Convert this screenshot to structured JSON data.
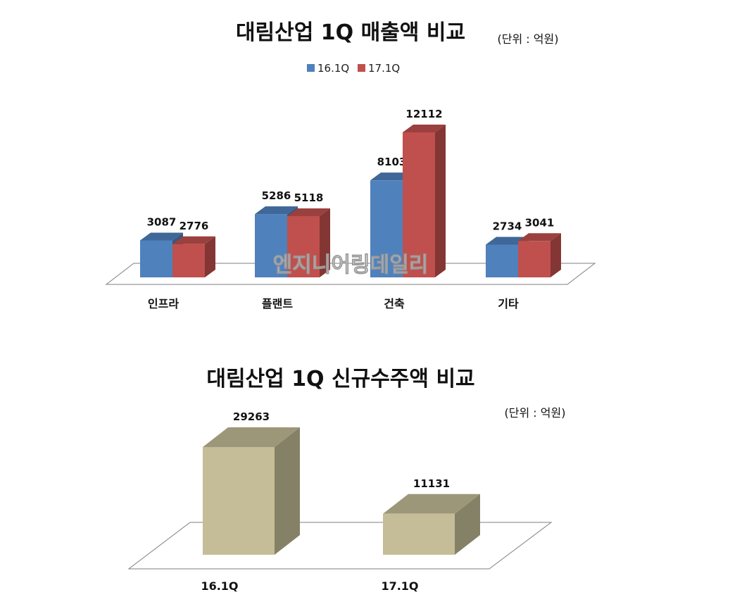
{
  "watermark": "엔지니어링데일리",
  "chart_data": [
    {
      "type": "bar",
      "title": "대림산업 1Q 매출액 비교",
      "unit": "(단위 : 억원)",
      "categories": [
        "인프라",
        "플랜트",
        "건축",
        "기타"
      ],
      "series": [
        {
          "name": "16.1Q",
          "color": "#4f81bd",
          "values": [
            3087,
            5286,
            8103,
            2734
          ]
        },
        {
          "name": "17.1Q",
          "color": "#c0504d",
          "values": [
            2776,
            5118,
            12112,
            3041
          ]
        }
      ],
      "legend": "top-center",
      "grid": false
    },
    {
      "type": "bar",
      "title": "대림산업 1Q 신규수주액 비교",
      "unit": "(단위 : 억원)",
      "categories": [
        "16.1Q",
        "17.1Q"
      ],
      "series": [
        {
          "color": "#c4bd97",
          "values": [
            29263,
            11131
          ]
        }
      ],
      "legend": "none",
      "grid": false
    }
  ]
}
